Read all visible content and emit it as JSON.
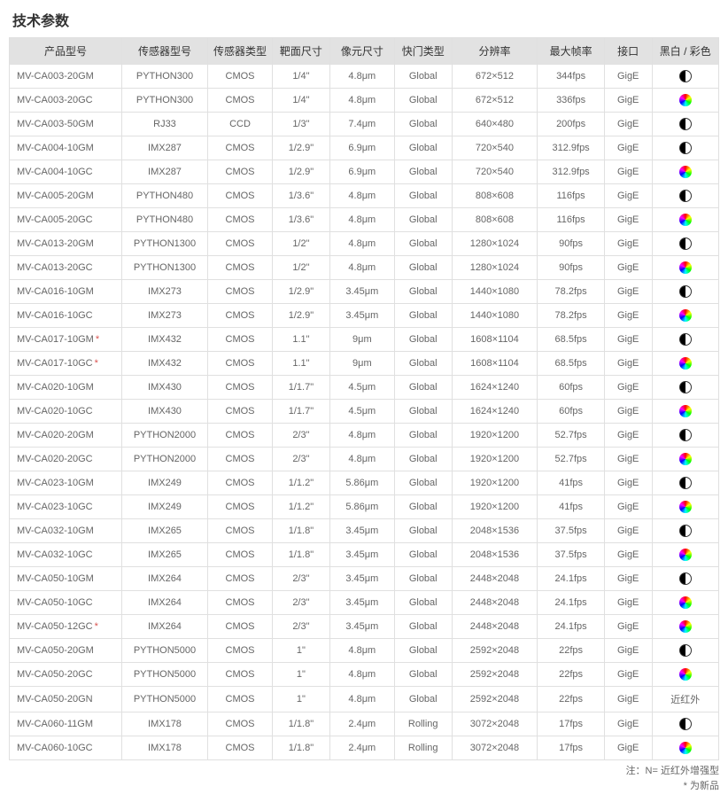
{
  "title": "技术参数",
  "columns": [
    "产品型号",
    "传感器型号",
    "传感器类型",
    "靶面尺寸",
    "像元尺寸",
    "快门类型",
    "分辨率",
    "最大帧率",
    "接口",
    "黑白 / 彩色"
  ],
  "footnotes": [
    "注：N= 近红外增强型",
    "* 为新品"
  ],
  "labels": {
    "nir": "近红外"
  },
  "rows": [
    {
      "model": "MV-CA003-20GM",
      "new": false,
      "sensor": "PYTHON300",
      "stype": "CMOS",
      "optfmt": "1/4\"",
      "pixsz": "4.8μm",
      "shutter": "Global",
      "res": "672×512",
      "fps": "344fps",
      "if": "GigE",
      "mc": "mono"
    },
    {
      "model": "MV-CA003-20GC",
      "new": false,
      "sensor": "PYTHON300",
      "stype": "CMOS",
      "optfmt": "1/4\"",
      "pixsz": "4.8μm",
      "shutter": "Global",
      "res": "672×512",
      "fps": "336fps",
      "if": "GigE",
      "mc": "color"
    },
    {
      "model": "MV-CA003-50GM",
      "new": false,
      "sensor": "RJ33",
      "stype": "CCD",
      "optfmt": "1/3\"",
      "pixsz": "7.4μm",
      "shutter": "Global",
      "res": "640×480",
      "fps": "200fps",
      "if": "GigE",
      "mc": "mono"
    },
    {
      "model": "MV-CA004-10GM",
      "new": false,
      "sensor": "IMX287",
      "stype": "CMOS",
      "optfmt": "1/2.9\"",
      "pixsz": "6.9μm",
      "shutter": "Global",
      "res": "720×540",
      "fps": "312.9fps",
      "if": "GigE",
      "mc": "mono"
    },
    {
      "model": "MV-CA004-10GC",
      "new": false,
      "sensor": "IMX287",
      "stype": "CMOS",
      "optfmt": "1/2.9\"",
      "pixsz": "6.9μm",
      "shutter": "Global",
      "res": "720×540",
      "fps": "312.9fps",
      "if": "GigE",
      "mc": "color"
    },
    {
      "model": "MV-CA005-20GM",
      "new": false,
      "sensor": "PYTHON480",
      "stype": "CMOS",
      "optfmt": "1/3.6\"",
      "pixsz": "4.8μm",
      "shutter": "Global",
      "res": "808×608",
      "fps": "116fps",
      "if": "GigE",
      "mc": "mono"
    },
    {
      "model": "MV-CA005-20GC",
      "new": false,
      "sensor": "PYTHON480",
      "stype": "CMOS",
      "optfmt": "1/3.6\"",
      "pixsz": "4.8μm",
      "shutter": "Global",
      "res": "808×608",
      "fps": "116fps",
      "if": "GigE",
      "mc": "color"
    },
    {
      "model": "MV-CA013-20GM",
      "new": false,
      "sensor": "PYTHON1300",
      "stype": "CMOS",
      "optfmt": "1/2\"",
      "pixsz": "4.8μm",
      "shutter": "Global",
      "res": "1280×1024",
      "fps": "90fps",
      "if": "GigE",
      "mc": "mono"
    },
    {
      "model": "MV-CA013-20GC",
      "new": false,
      "sensor": "PYTHON1300",
      "stype": "CMOS",
      "optfmt": "1/2\"",
      "pixsz": "4.8μm",
      "shutter": "Global",
      "res": "1280×1024",
      "fps": "90fps",
      "if": "GigE",
      "mc": "color"
    },
    {
      "model": "MV-CA016-10GM",
      "new": false,
      "sensor": "IMX273",
      "stype": "CMOS",
      "optfmt": "1/2.9\"",
      "pixsz": "3.45μm",
      "shutter": "Global",
      "res": "1440×1080",
      "fps": "78.2fps",
      "if": "GigE",
      "mc": "mono"
    },
    {
      "model": "MV-CA016-10GC",
      "new": false,
      "sensor": "IMX273",
      "stype": "CMOS",
      "optfmt": "1/2.9\"",
      "pixsz": "3.45μm",
      "shutter": "Global",
      "res": "1440×1080",
      "fps": "78.2fps",
      "if": "GigE",
      "mc": "color"
    },
    {
      "model": "MV-CA017-10GM",
      "new": true,
      "sensor": "IMX432",
      "stype": "CMOS",
      "optfmt": "1.1\"",
      "pixsz": "9μm",
      "shutter": "Global",
      "res": "1608×1104",
      "fps": "68.5fps",
      "if": "GigE",
      "mc": "mono"
    },
    {
      "model": "MV-CA017-10GC",
      "new": true,
      "sensor": "IMX432",
      "stype": "CMOS",
      "optfmt": "1.1\"",
      "pixsz": "9μm",
      "shutter": "Global",
      "res": "1608×1104",
      "fps": "68.5fps",
      "if": "GigE",
      "mc": "color"
    },
    {
      "model": "MV-CA020-10GM",
      "new": false,
      "sensor": "IMX430",
      "stype": "CMOS",
      "optfmt": "1/1.7\"",
      "pixsz": "4.5μm",
      "shutter": "Global",
      "res": "1624×1240",
      "fps": "60fps",
      "if": "GigE",
      "mc": "mono"
    },
    {
      "model": "MV-CA020-10GC",
      "new": false,
      "sensor": "IMX430",
      "stype": "CMOS",
      "optfmt": "1/1.7\"",
      "pixsz": "4.5μm",
      "shutter": "Global",
      "res": "1624×1240",
      "fps": "60fps",
      "if": "GigE",
      "mc": "color"
    },
    {
      "model": "MV-CA020-20GM",
      "new": false,
      "sensor": "PYTHON2000",
      "stype": "CMOS",
      "optfmt": "2/3\"",
      "pixsz": "4.8μm",
      "shutter": "Global",
      "res": "1920×1200",
      "fps": "52.7fps",
      "if": "GigE",
      "mc": "mono"
    },
    {
      "model": "MV-CA020-20GC",
      "new": false,
      "sensor": "PYTHON2000",
      "stype": "CMOS",
      "optfmt": "2/3\"",
      "pixsz": "4.8μm",
      "shutter": "Global",
      "res": "1920×1200",
      "fps": "52.7fps",
      "if": "GigE",
      "mc": "color"
    },
    {
      "model": "MV-CA023-10GM",
      "new": false,
      "sensor": "IMX249",
      "stype": "CMOS",
      "optfmt": "1/1.2\"",
      "pixsz": "5.86μm",
      "shutter": "Global",
      "res": "1920×1200",
      "fps": "41fps",
      "if": "GigE",
      "mc": "mono"
    },
    {
      "model": "MV-CA023-10GC",
      "new": false,
      "sensor": "IMX249",
      "stype": "CMOS",
      "optfmt": "1/1.2\"",
      "pixsz": "5.86μm",
      "shutter": "Global",
      "res": "1920×1200",
      "fps": "41fps",
      "if": "GigE",
      "mc": "color"
    },
    {
      "model": "MV-CA032-10GM",
      "new": false,
      "sensor": "IMX265",
      "stype": "CMOS",
      "optfmt": "1/1.8\"",
      "pixsz": "3.45μm",
      "shutter": "Global",
      "res": "2048×1536",
      "fps": "37.5fps",
      "if": "GigE",
      "mc": "mono"
    },
    {
      "model": "MV-CA032-10GC",
      "new": false,
      "sensor": "IMX265",
      "stype": "CMOS",
      "optfmt": "1/1.8\"",
      "pixsz": "3.45μm",
      "shutter": "Global",
      "res": "2048×1536",
      "fps": "37.5fps",
      "if": "GigE",
      "mc": "color"
    },
    {
      "model": "MV-CA050-10GM",
      "new": false,
      "sensor": "IMX264",
      "stype": "CMOS",
      "optfmt": "2/3\"",
      "pixsz": "3.45μm",
      "shutter": "Global",
      "res": "2448×2048",
      "fps": "24.1fps",
      "if": "GigE",
      "mc": "mono"
    },
    {
      "model": "MV-CA050-10GC",
      "new": false,
      "sensor": "IMX264",
      "stype": "CMOS",
      "optfmt": "2/3\"",
      "pixsz": "3.45μm",
      "shutter": "Global",
      "res": "2448×2048",
      "fps": "24.1fps",
      "if": "GigE",
      "mc": "color"
    },
    {
      "model": "MV-CA050-12GC",
      "new": true,
      "sensor": "IMX264",
      "stype": "CMOS",
      "optfmt": "2/3\"",
      "pixsz": "3.45μm",
      "shutter": "Global",
      "res": "2448×2048",
      "fps": "24.1fps",
      "if": "GigE",
      "mc": "color"
    },
    {
      "model": "MV-CA050-20GM",
      "new": false,
      "sensor": "PYTHON5000",
      "stype": "CMOS",
      "optfmt": "1\"",
      "pixsz": "4.8μm",
      "shutter": "Global",
      "res": "2592×2048",
      "fps": "22fps",
      "if": "GigE",
      "mc": "mono"
    },
    {
      "model": "MV-CA050-20GC",
      "new": false,
      "sensor": "PYTHON5000",
      "stype": "CMOS",
      "optfmt": "1\"",
      "pixsz": "4.8μm",
      "shutter": "Global",
      "res": "2592×2048",
      "fps": "22fps",
      "if": "GigE",
      "mc": "color"
    },
    {
      "model": "MV-CA050-20GN",
      "new": false,
      "sensor": "PYTHON5000",
      "stype": "CMOS",
      "optfmt": "1\"",
      "pixsz": "4.8μm",
      "shutter": "Global",
      "res": "2592×2048",
      "fps": "22fps",
      "if": "GigE",
      "mc": "nir"
    },
    {
      "model": "MV-CA060-11GM",
      "new": false,
      "sensor": "IMX178",
      "stype": "CMOS",
      "optfmt": "1/1.8\"",
      "pixsz": "2.4μm",
      "shutter": "Rolling",
      "res": "3072×2048",
      "fps": "17fps",
      "if": "GigE",
      "mc": "mono"
    },
    {
      "model": "MV-CA060-10GC",
      "new": false,
      "sensor": "IMX178",
      "stype": "CMOS",
      "optfmt": "1/1.8\"",
      "pixsz": "2.4μm",
      "shutter": "Rolling",
      "res": "3072×2048",
      "fps": "17fps",
      "if": "GigE",
      "mc": "color"
    }
  ]
}
